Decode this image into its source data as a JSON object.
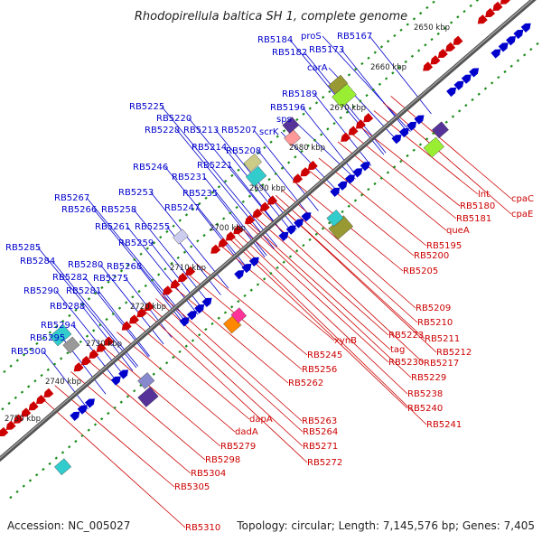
{
  "title": "Rhodopirellula baltica SH 1, complete genome",
  "footer": {
    "accession": "Accession: NC_005027",
    "stats": "Topology: circular; Length: 7,145,576 bp; Genes: 7,405"
  },
  "colors": {
    "forward": "#0000cc",
    "reverse": "#cc0000",
    "backbone": "#777777",
    "dots": "#1a8c1a"
  },
  "ticks": [
    "2650 kbp",
    "2660 kbp",
    "2670 kbp",
    "2680 kbp",
    "2690 kbp",
    "2700 kbp",
    "2710 kbp",
    "2720 kbp",
    "2730 kbp",
    "2740 kbp",
    "2750 kbp"
  ],
  "forward_genes": [
    "RB5184",
    "proS",
    "RB5167",
    "RB5182",
    "RB5173",
    "carA",
    "RB5189",
    "RB5196",
    "sps",
    "scrK",
    "RB5225",
    "RB5220",
    "RB5228",
    "RB5213",
    "RB5207",
    "RB5214",
    "RB5208",
    "RB5221",
    "RB5246",
    "RB5231",
    "RB5235",
    "RB5253",
    "RB5247",
    "RB5267",
    "RB5266",
    "RB5258",
    "RB5261",
    "RB5255",
    "RB5259",
    "RB5285",
    "RB5268",
    "RB5284",
    "RB5280",
    "RB5282",
    "RB5275",
    "RB5290",
    "RB5281",
    "RB5288",
    "RB5294",
    "RB5295",
    "RB5300"
  ],
  "reverse_genes": [
    "cpaC",
    "lnt",
    "cpaE",
    "RB5180",
    "RB5181",
    "queA",
    "RB5195",
    "RB5200",
    "RB5205",
    "RB5209",
    "RB5210",
    "RB5211",
    "RB5212",
    "RB5223",
    "tag",
    "RB5217",
    "RB5230",
    "RB5229",
    "xynB",
    "RB5245",
    "RB5256",
    "RB5238",
    "RB5240",
    "RB5262",
    "RB5241",
    "RB5263",
    "dapA",
    "RB5264",
    "dadA",
    "RB5271",
    "RB5279",
    "RB5272",
    "RB5298",
    "RB5304",
    "RB5305",
    "RB5310"
  ]
}
